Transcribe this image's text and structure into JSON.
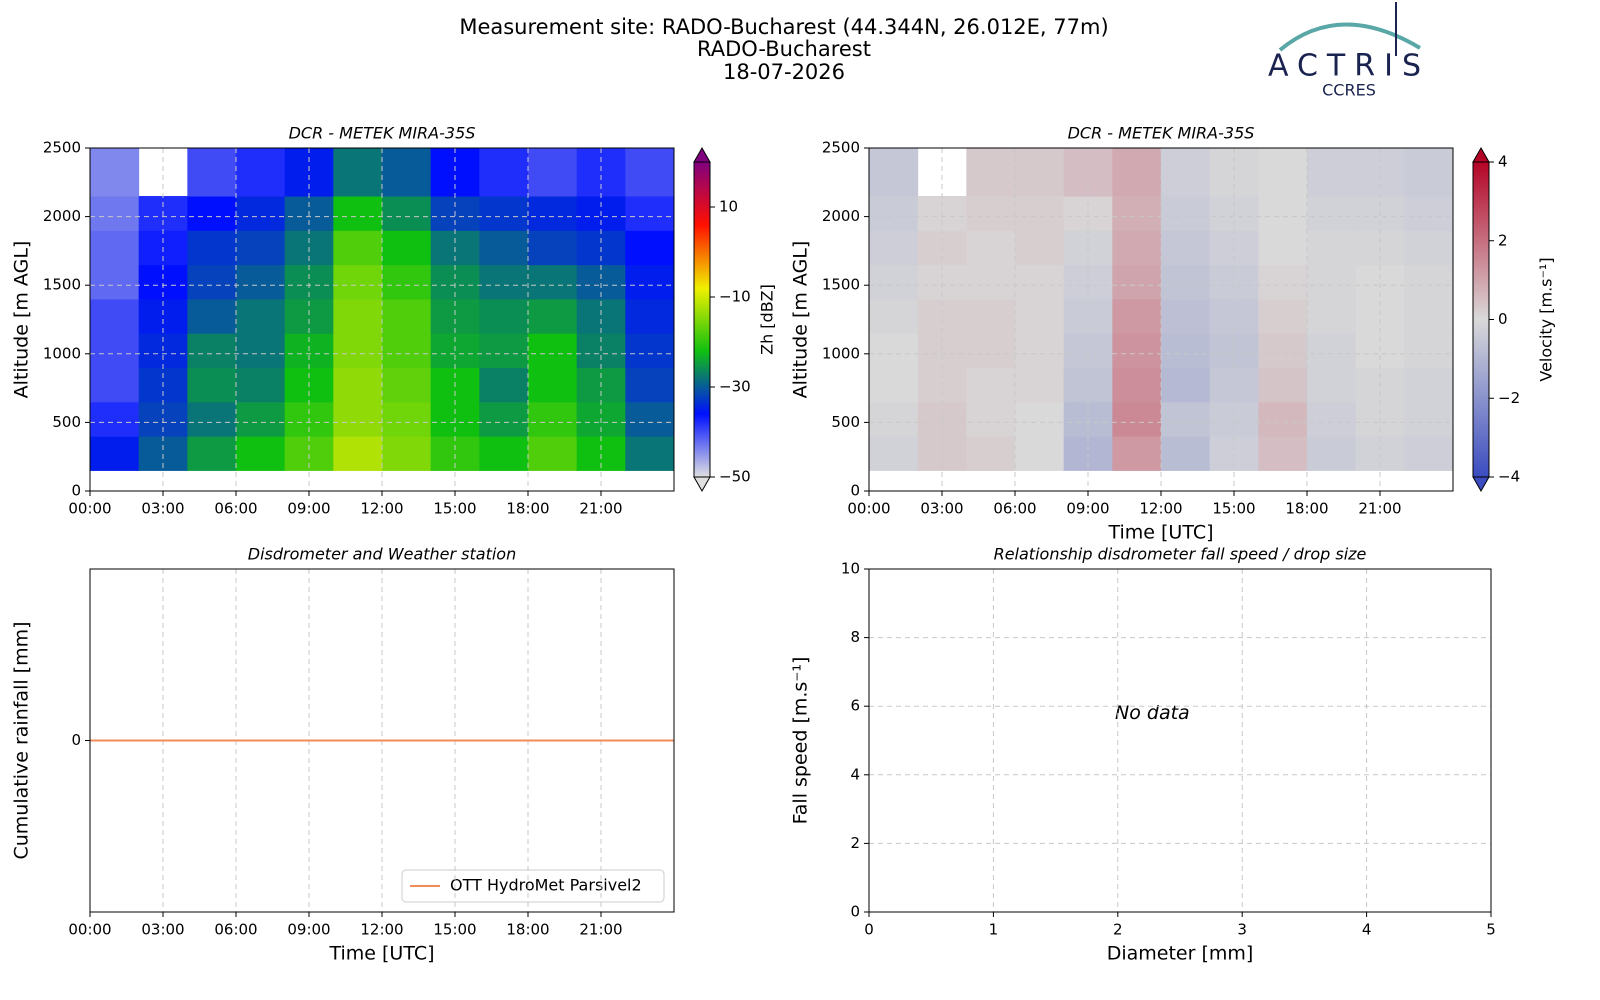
{
  "header": {
    "title": "Measurement site: RADO-Bucharest (44.344N, 26.012E, 77m)",
    "subtitle": "RADO-Bucharest",
    "date": "18-07-2026"
  },
  "logo": {
    "name": "ACTRIS",
    "subtitle": "CCRES"
  },
  "chart_data": [
    {
      "type": "heatmap",
      "title": "DCR - METEK MIRA-35S",
      "ylabel": "Altitude [m AGL]",
      "xlim": [
        0,
        24
      ],
      "xticks": [
        {
          "value": 0,
          "label": "00:00"
        },
        {
          "value": 3,
          "label": "03:00"
        },
        {
          "value": 6,
          "label": "06:00"
        },
        {
          "value": 9,
          "label": "09:00"
        },
        {
          "value": 12,
          "label": "12:00"
        },
        {
          "value": 15,
          "label": "15:00"
        },
        {
          "value": 18,
          "label": "18:00"
        },
        {
          "value": 21,
          "label": "21:00"
        }
      ],
      "ylim": [
        0,
        2500
      ],
      "yticks": [
        0,
        500,
        1000,
        1500,
        2000,
        2500
      ],
      "grid": true,
      "time_bins": [
        0,
        2,
        4,
        6,
        8,
        10,
        12,
        14,
        16,
        18,
        20,
        22,
        24
      ],
      "altitude_bins": [
        150,
        400,
        650,
        900,
        1150,
        1400,
        1650,
        1900,
        2150,
        2500
      ],
      "z": [
        [
          -35,
          -30,
          -25,
          -22,
          -18,
          -12,
          -15,
          -20,
          -22,
          -18,
          -22,
          -28
        ],
        [
          -38,
          -32,
          -28,
          -25,
          -20,
          -14,
          -16,
          -22,
          -25,
          -20,
          -24,
          -30
        ],
        [
          -40,
          -33,
          -26,
          -27,
          -22,
          -14,
          -17,
          -22,
          -27,
          -22,
          -25,
          -32
        ],
        [
          -40,
          -34,
          -27,
          -28,
          -23,
          -15,
          -18,
          -24,
          -25,
          -22,
          -27,
          -33
        ],
        [
          -40,
          -35,
          -30,
          -28,
          -25,
          -15,
          -18,
          -25,
          -26,
          -25,
          -28,
          -34
        ],
        [
          -42,
          -36,
          -32,
          -30,
          -26,
          -16,
          -20,
          -26,
          -28,
          -28,
          -30,
          -35
        ],
        [
          -42,
          -37,
          -33,
          -32,
          -28,
          -18,
          -22,
          -28,
          -30,
          -32,
          -33,
          -36
        ],
        [
          -43,
          -38,
          -36,
          -34,
          -30,
          -22,
          -26,
          -32,
          -33,
          -34,
          -35,
          -38
        ],
        [
          -44,
          null,
          -40,
          -38,
          -35,
          -28,
          -30,
          -36,
          -38,
          -40,
          -38,
          -40
        ]
      ],
      "colorbar_label": "Zh [dBZ]",
      "clim": [
        -50,
        20
      ],
      "cticks": [
        {
          "value": -50,
          "label": "−50"
        },
        {
          "value": -30,
          "label": "−30"
        },
        {
          "value": -10,
          "label": "−10"
        },
        10
      ],
      "colormap": [
        "#e0e0e0",
        "#0010ff",
        "#10c010",
        "#f0f000",
        "#ff1000",
        "#800080"
      ]
    },
    {
      "type": "heatmap",
      "title": "DCR - METEK MIRA-35S",
      "xlabel": "Time [UTC]",
      "ylabel": "Altitude [m AGL]",
      "xlim": [
        0,
        24
      ],
      "xticks": [
        {
          "value": 0,
          "label": "00:00"
        },
        {
          "value": 3,
          "label": "03:00"
        },
        {
          "value": 6,
          "label": "06:00"
        },
        {
          "value": 9,
          "label": "09:00"
        },
        {
          "value": 12,
          "label": "12:00"
        },
        {
          "value": 15,
          "label": "15:00"
        },
        {
          "value": 18,
          "label": "18:00"
        },
        {
          "value": 21,
          "label": "21:00"
        }
      ],
      "ylim": [
        0,
        2500
      ],
      "yticks": [
        0,
        500,
        1000,
        1500,
        2000,
        2500
      ],
      "grid": true,
      "time_bins": [
        0,
        2,
        4,
        6,
        8,
        10,
        12,
        14,
        16,
        18,
        20,
        22,
        24
      ],
      "altitude_bins": [
        150,
        400,
        650,
        900,
        1150,
        1400,
        1650,
        1900,
        2150,
        2500
      ],
      "z": [
        [
          -0.2,
          0.3,
          0.2,
          0,
          -1,
          1.2,
          -0.8,
          -0.3,
          0.5,
          -0.4,
          -0.2,
          -0.3
        ],
        [
          -0.1,
          0.3,
          0.1,
          0,
          -0.8,
          1.5,
          -0.6,
          -0.4,
          0.6,
          -0.3,
          -0.1,
          -0.2
        ],
        [
          0,
          0.2,
          0.1,
          0.1,
          -0.6,
          1.4,
          -0.9,
          -0.5,
          0.4,
          -0.2,
          -0.1,
          -0.2
        ],
        [
          0,
          0.2,
          0.2,
          0.1,
          -0.5,
          1.3,
          -0.8,
          -0.6,
          0.3,
          -0.2,
          0,
          -0.1
        ],
        [
          -0.1,
          0.2,
          0.2,
          0.1,
          -0.4,
          1.2,
          -0.7,
          -0.5,
          0.2,
          -0.1,
          0,
          -0.1
        ],
        [
          -0.2,
          0.1,
          0.1,
          0.1,
          -0.3,
          1.0,
          -0.6,
          -0.4,
          0.1,
          -0.1,
          0,
          -0.1
        ],
        [
          -0.3,
          0.2,
          0.1,
          0.2,
          -0.2,
          0.9,
          -0.5,
          -0.3,
          0,
          -0.1,
          -0.1,
          -0.2
        ],
        [
          -0.4,
          0.1,
          0.2,
          0.2,
          0.1,
          0.8,
          -0.4,
          -0.2,
          0,
          -0.2,
          -0.2,
          -0.3
        ],
        [
          -0.5,
          null,
          0.3,
          0.3,
          0.5,
          0.9,
          -0.3,
          -0.1,
          0,
          -0.3,
          -0.3,
          -0.4
        ]
      ],
      "colorbar_label": "Velocity [m.s⁻¹]",
      "clim": [
        -4,
        4
      ],
      "cticks": [
        {
          "value": -4,
          "label": "−4"
        },
        {
          "value": -2,
          "label": "−2"
        },
        0,
        2,
        4
      ],
      "colormap": [
        "#3b4cc0",
        "#d9d9d9",
        "#b40426"
      ]
    },
    {
      "type": "line",
      "title": "Disdrometer and Weather station",
      "xlabel": "Time [UTC]",
      "ylabel": "Cumulative rainfall [mm]",
      "xlim": [
        0,
        24
      ],
      "xticks": [
        {
          "value": 0,
          "label": "00:00"
        },
        {
          "value": 3,
          "label": "03:00"
        },
        {
          "value": 6,
          "label": "06:00"
        },
        {
          "value": 9,
          "label": "09:00"
        },
        {
          "value": 12,
          "label": "12:00"
        },
        {
          "value": 15,
          "label": "15:00"
        },
        {
          "value": 18,
          "label": "18:00"
        },
        {
          "value": 21,
          "label": "21:00"
        }
      ],
      "ylim": [
        -0.055,
        0.055
      ],
      "yticks": [
        0
      ],
      "grid": true,
      "legend": "lower right",
      "x": [
        0,
        24
      ],
      "series": [
        {
          "name": "OTT HydroMet Parsivel2",
          "color": "#f08c5a",
          "values": [
            0,
            0
          ]
        }
      ]
    },
    {
      "type": "scatter",
      "title": "Relationship disdrometer fall speed / drop size",
      "xlabel": "Diameter [mm]",
      "ylabel": "Fall speed [m.s⁻¹]",
      "xlim": [
        0,
        5
      ],
      "xticks": [
        0,
        1,
        2,
        3,
        4,
        5
      ],
      "ylim": [
        0,
        10
      ],
      "yticks": [
        0,
        2,
        4,
        6,
        8,
        10
      ],
      "grid": true,
      "annotation": "No data",
      "series": []
    }
  ]
}
